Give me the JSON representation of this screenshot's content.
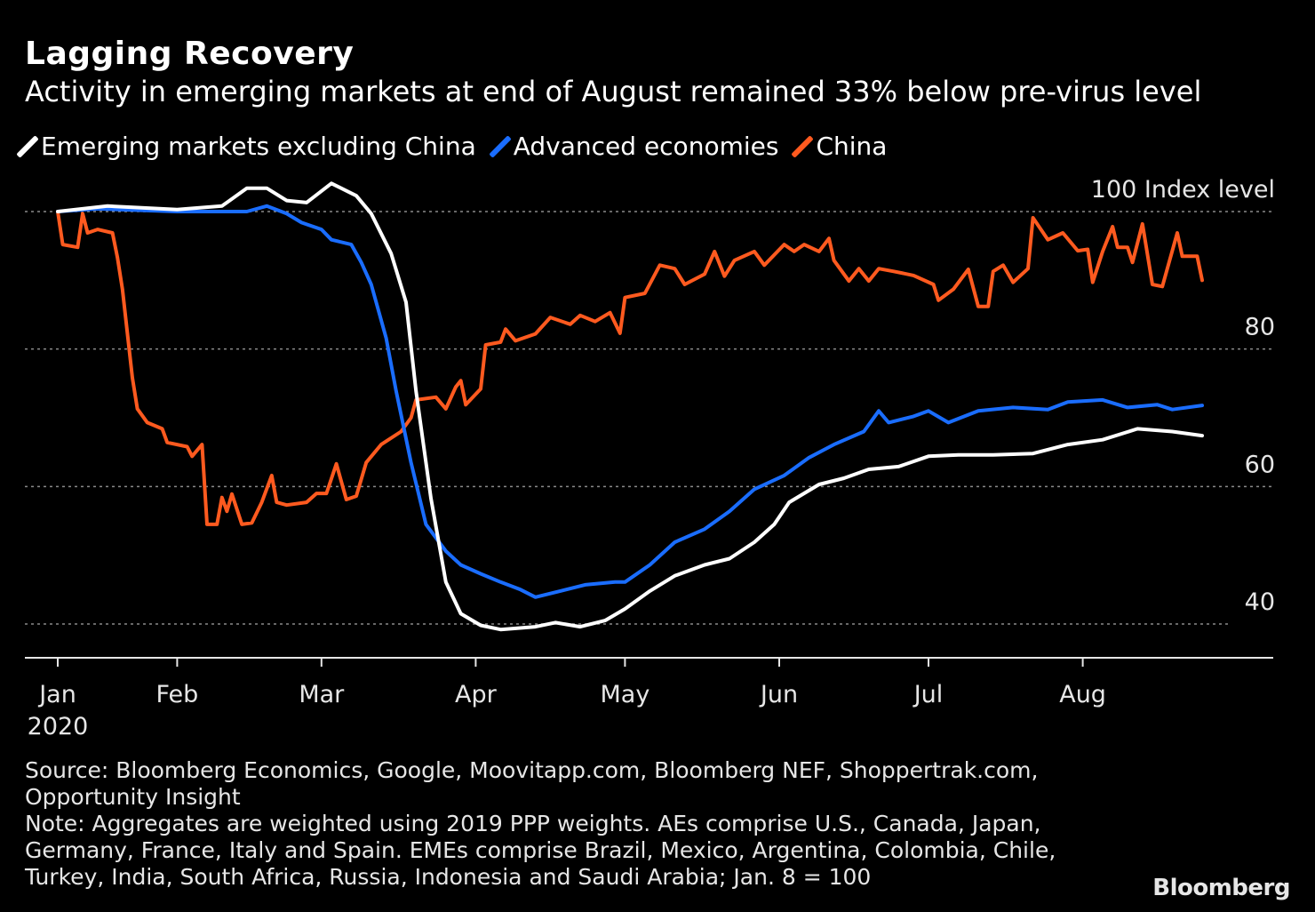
{
  "chart_data": {
    "type": "line",
    "title": "Lagging Recovery",
    "subtitle": "Activity in emerging markets at end of August remained 33% below pre-virus level",
    "ylabel": "Index level",
    "ylim": [
      36,
      106
    ],
    "yticks": [
      100,
      80,
      60,
      40
    ],
    "grid": true,
    "legend_position": "top-left",
    "x_tick_labels": [
      {
        "label": "Jan",
        "date": "2020-01-01",
        "sub": "2020"
      },
      {
        "label": "Feb",
        "date": "2020-02-01"
      },
      {
        "label": "Mar",
        "date": "2020-03-01"
      },
      {
        "label": "Apr",
        "date": "2020-04-01"
      },
      {
        "label": "May",
        "date": "2020-05-01"
      },
      {
        "label": "Jun",
        "date": "2020-06-01"
      },
      {
        "label": "Jul",
        "date": "2020-07-01"
      },
      {
        "label": "Aug",
        "date": "2020-08-01"
      }
    ],
    "xlim": [
      "2020-01-08",
      "2020-09-06"
    ],
    "series": [
      {
        "name": "Emerging markets excluding China",
        "color": "#ffffff",
        "points": [
          [
            "2020-01-08",
            100
          ],
          [
            "2020-01-18",
            100.8
          ],
          [
            "2020-02-01",
            100.3
          ],
          [
            "2020-02-10",
            100.8
          ],
          [
            "2020-02-15",
            103.4
          ],
          [
            "2020-02-19",
            103.4
          ],
          [
            "2020-02-23",
            101.6
          ],
          [
            "2020-02-27",
            101.3
          ],
          [
            "2020-03-03",
            104.1
          ],
          [
            "2020-03-08",
            102.3
          ],
          [
            "2020-03-11",
            99.7
          ],
          [
            "2020-03-15",
            93.9
          ],
          [
            "2020-03-18",
            86.8
          ],
          [
            "2020-03-20",
            73.9
          ],
          [
            "2020-03-23",
            58.3
          ],
          [
            "2020-03-26",
            46.1
          ],
          [
            "2020-03-29",
            41.5
          ],
          [
            "2020-04-02",
            39.8
          ],
          [
            "2020-04-06",
            39.2
          ],
          [
            "2020-04-13",
            39.6
          ],
          [
            "2020-04-17",
            40.2
          ],
          [
            "2020-04-22",
            39.6
          ],
          [
            "2020-04-27",
            40.5
          ],
          [
            "2020-05-01",
            42.2
          ],
          [
            "2020-05-06",
            44.8
          ],
          [
            "2020-05-11",
            47
          ],
          [
            "2020-05-17",
            48.6
          ],
          [
            "2020-05-22",
            49.5
          ],
          [
            "2020-05-27",
            51.9
          ],
          [
            "2020-05-31",
            54.5
          ],
          [
            "2020-06-03",
            57.7
          ],
          [
            "2020-06-09",
            60.3
          ],
          [
            "2020-06-14",
            61.2
          ],
          [
            "2020-06-19",
            62.5
          ],
          [
            "2020-06-25",
            62.9
          ],
          [
            "2020-07-01",
            64.4
          ],
          [
            "2020-07-07",
            64.6
          ],
          [
            "2020-07-14",
            64.6
          ],
          [
            "2020-07-22",
            64.8
          ],
          [
            "2020-07-29",
            66.1
          ],
          [
            "2020-08-05",
            66.8
          ],
          [
            "2020-08-12",
            68.4
          ],
          [
            "2020-08-19",
            68
          ],
          [
            "2020-08-25",
            67.4
          ]
        ]
      },
      {
        "name": "Advanced economies",
        "color": "#1a6dff",
        "points": [
          [
            "2020-01-08",
            100
          ],
          [
            "2020-01-16",
            100.4
          ],
          [
            "2020-02-01",
            100
          ],
          [
            "2020-02-15",
            100
          ],
          [
            "2020-02-19",
            100.8
          ],
          [
            "2020-02-23",
            99.7
          ],
          [
            "2020-02-26",
            98.4
          ],
          [
            "2020-03-01",
            97.4
          ],
          [
            "2020-03-03",
            95.9
          ],
          [
            "2020-03-07",
            95.2
          ],
          [
            "2020-03-09",
            92.6
          ],
          [
            "2020-03-11",
            89.4
          ],
          [
            "2020-03-14",
            81.6
          ],
          [
            "2020-03-16",
            73.9
          ],
          [
            "2020-03-19",
            63.5
          ],
          [
            "2020-03-22",
            54.5
          ],
          [
            "2020-03-26",
            50.6
          ],
          [
            "2020-03-29",
            48.6
          ],
          [
            "2020-04-02",
            47.3
          ],
          [
            "2020-04-06",
            46.1
          ],
          [
            "2020-04-10",
            45
          ],
          [
            "2020-04-13",
            43.9
          ],
          [
            "2020-04-18",
            44.8
          ],
          [
            "2020-04-23",
            45.7
          ],
          [
            "2020-04-29",
            46.1
          ],
          [
            "2020-05-01",
            46.1
          ],
          [
            "2020-05-06",
            48.6
          ],
          [
            "2020-05-11",
            51.9
          ],
          [
            "2020-05-17",
            53.8
          ],
          [
            "2020-05-22",
            56.4
          ],
          [
            "2020-05-27",
            59.6
          ],
          [
            "2020-06-02",
            61.6
          ],
          [
            "2020-06-07",
            64.2
          ],
          [
            "2020-06-12",
            66.1
          ],
          [
            "2020-06-18",
            68
          ],
          [
            "2020-06-21",
            71
          ],
          [
            "2020-06-23",
            69.3
          ],
          [
            "2020-06-28",
            70.2
          ],
          [
            "2020-07-01",
            71
          ],
          [
            "2020-07-05",
            69.3
          ],
          [
            "2020-07-11",
            71
          ],
          [
            "2020-07-18",
            71.5
          ],
          [
            "2020-07-25",
            71.2
          ],
          [
            "2020-07-29",
            72.3
          ],
          [
            "2020-08-05",
            72.6
          ],
          [
            "2020-08-10",
            71.5
          ],
          [
            "2020-08-16",
            71.9
          ],
          [
            "2020-08-19",
            71.2
          ],
          [
            "2020-08-25",
            71.8
          ]
        ]
      },
      {
        "name": "China",
        "color": "#ff5a1f",
        "points": [
          [
            "2020-01-08",
            100
          ],
          [
            "2020-01-09",
            95.2
          ],
          [
            "2020-01-12",
            94.8
          ],
          [
            "2020-01-13",
            99.7
          ],
          [
            "2020-01-14",
            96.9
          ],
          [
            "2020-01-16",
            97.4
          ],
          [
            "2020-01-19",
            96.9
          ],
          [
            "2020-01-20",
            93.3
          ],
          [
            "2020-01-21",
            88.7
          ],
          [
            "2020-01-23",
            75.8
          ],
          [
            "2020-01-24",
            71.3
          ],
          [
            "2020-01-26",
            69.3
          ],
          [
            "2020-01-29",
            68.4
          ],
          [
            "2020-01-30",
            66.4
          ],
          [
            "2020-02-03",
            65.8
          ],
          [
            "2020-02-04",
            64.4
          ],
          [
            "2020-02-06",
            66.1
          ],
          [
            "2020-02-07",
            54.5
          ],
          [
            "2020-02-09",
            54.5
          ],
          [
            "2020-02-10",
            58.4
          ],
          [
            "2020-02-11",
            56.4
          ],
          [
            "2020-02-12",
            58.9
          ],
          [
            "2020-02-14",
            54.5
          ],
          [
            "2020-02-16",
            54.7
          ],
          [
            "2020-02-18",
            57.7
          ],
          [
            "2020-02-20",
            61.6
          ],
          [
            "2020-02-21",
            57.7
          ],
          [
            "2020-02-23",
            57.3
          ],
          [
            "2020-02-27",
            57.7
          ],
          [
            "2020-02-29",
            59
          ],
          [
            "2020-03-02",
            59
          ],
          [
            "2020-03-04",
            63.3
          ],
          [
            "2020-03-06",
            58.1
          ],
          [
            "2020-03-08",
            58.6
          ],
          [
            "2020-03-10",
            63.5
          ],
          [
            "2020-03-13",
            66.1
          ],
          [
            "2020-03-17",
            68
          ],
          [
            "2020-03-19",
            70
          ],
          [
            "2020-03-20",
            72.6
          ],
          [
            "2020-03-24",
            73
          ],
          [
            "2020-03-26",
            71.3
          ],
          [
            "2020-03-28",
            74.5
          ],
          [
            "2020-03-29",
            75.4
          ],
          [
            "2020-03-30",
            71.9
          ],
          [
            "2020-04-02",
            74.2
          ],
          [
            "2020-04-03",
            80.6
          ],
          [
            "2020-04-06",
            81
          ],
          [
            "2020-04-07",
            82.9
          ],
          [
            "2020-04-09",
            81.2
          ],
          [
            "2020-04-13",
            82.2
          ],
          [
            "2020-04-16",
            84.6
          ],
          [
            "2020-04-20",
            83.6
          ],
          [
            "2020-04-22",
            84.9
          ],
          [
            "2020-04-25",
            84
          ],
          [
            "2020-04-28",
            85.3
          ],
          [
            "2020-04-30",
            82.3
          ],
          [
            "2020-05-01",
            87.5
          ],
          [
            "2020-05-05",
            88.1
          ],
          [
            "2020-05-08",
            92.2
          ],
          [
            "2020-05-11",
            91.7
          ],
          [
            "2020-05-13",
            89.4
          ],
          [
            "2020-05-17",
            90.9
          ],
          [
            "2020-05-19",
            94.2
          ],
          [
            "2020-05-21",
            90.6
          ],
          [
            "2020-05-23",
            92.9
          ],
          [
            "2020-05-27",
            94.2
          ],
          [
            "2020-05-29",
            92.2
          ],
          [
            "2020-06-02",
            95.2
          ],
          [
            "2020-06-04",
            94.2
          ],
          [
            "2020-06-06",
            95.2
          ],
          [
            "2020-06-09",
            94.2
          ],
          [
            "2020-06-11",
            96.1
          ],
          [
            "2020-06-12",
            92.9
          ],
          [
            "2020-06-15",
            89.9
          ],
          [
            "2020-06-17",
            91.7
          ],
          [
            "2020-06-19",
            89.9
          ],
          [
            "2020-06-21",
            91.7
          ],
          [
            "2020-06-24",
            91.3
          ],
          [
            "2020-06-28",
            90.7
          ],
          [
            "2020-07-02",
            89.4
          ],
          [
            "2020-07-03",
            87.1
          ],
          [
            "2020-07-06",
            88.7
          ],
          [
            "2020-07-09",
            91.6
          ],
          [
            "2020-07-11",
            86.2
          ],
          [
            "2020-07-13",
            86.2
          ],
          [
            "2020-07-14",
            91.3
          ],
          [
            "2020-07-16",
            92.2
          ],
          [
            "2020-07-18",
            89.7
          ],
          [
            "2020-07-21",
            91.7
          ],
          [
            "2020-07-22",
            99.1
          ],
          [
            "2020-07-25",
            95.9
          ],
          [
            "2020-07-28",
            96.9
          ],
          [
            "2020-07-31",
            94.3
          ],
          [
            "2020-08-02",
            94.5
          ],
          [
            "2020-08-03",
            89.7
          ],
          [
            "2020-08-05",
            94.2
          ],
          [
            "2020-08-07",
            97.8
          ],
          [
            "2020-08-08",
            94.8
          ],
          [
            "2020-08-10",
            94.8
          ],
          [
            "2020-08-11",
            92.6
          ],
          [
            "2020-08-13",
            98.2
          ],
          [
            "2020-08-15",
            89.4
          ],
          [
            "2020-08-17",
            89.1
          ],
          [
            "2020-08-20",
            96.9
          ],
          [
            "2020-08-21",
            93.5
          ],
          [
            "2020-08-24",
            93.5
          ],
          [
            "2020-08-25",
            90
          ]
        ]
      }
    ]
  },
  "notes": {
    "source_line1": "Source: Bloomberg Economics, Google, Moovitapp.com, Bloomberg NEF, Shoppertrak.com,",
    "source_line2": "Opportunity Insight",
    "note_line1": "Note: Aggregates are weighted using 2019 PPP weights. AEs comprise U.S., Canada, Japan,",
    "note_line2": "Germany, France, Italy and Spain. EMEs comprise Brazil, Mexico, Argentina, Colombia, Chile,",
    "note_line3": "Turkey, India, South Africa, Russia, Indonesia and Saudi Arabia; Jan. 8 = 100"
  },
  "logo": "Bloomberg"
}
